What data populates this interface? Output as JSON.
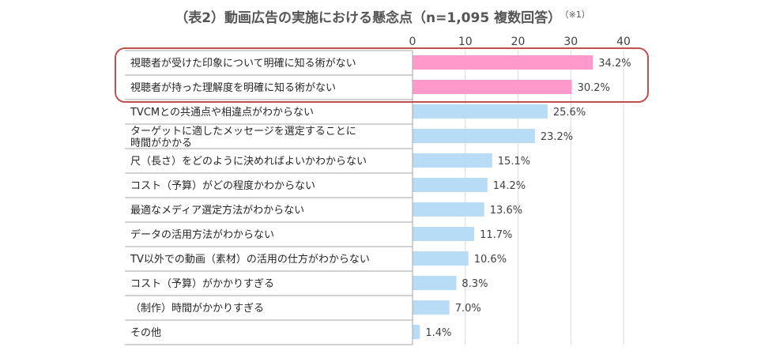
{
  "title": "（表2）動画広告の実施における懸念点（n=1,095 複数回答）",
  "note": "（※1）",
  "colors": {
    "highlight": "#ff99cc",
    "normal": "#b9dcf6",
    "frame": "#c0504d"
  },
  "chart_data": {
    "type": "bar",
    "orientation": "horizontal",
    "xlim": [
      0,
      40
    ],
    "ticks": [
      0,
      10,
      20,
      30,
      40
    ],
    "categories": [
      "視聴者が受けた印象について明確に知る術がない",
      "視聴者が持った理解度を明確に知る術がない",
      "TVCMとの共通点や相違点がわからない",
      "ターゲットに適したメッセージを選定することに\n時間がかかる",
      "尺（長さ）をどのように決めればよいかわからない",
      "コスト（予算）がどの程度かわからない",
      "最適なメディア選定方法がわからない",
      "データの活用方法がわからない",
      "TV以外での動画（素材）の活用の仕方がわからない",
      "コスト（予算）がかかりすぎる",
      "（制作）時間がかかりすぎる",
      "その他"
    ],
    "values": [
      34.2,
      30.2,
      25.6,
      23.2,
      15.1,
      14.2,
      13.6,
      11.7,
      10.6,
      8.3,
      7.0,
      1.4
    ],
    "value_labels": [
      "34.2%",
      "30.2%",
      "25.6%",
      "23.2%",
      "15.1%",
      "14.2%",
      "13.6%",
      "11.7%",
      "10.6%",
      "8.3%",
      "7.0%",
      "1.4%"
    ],
    "highlighted": [
      0,
      1
    ],
    "grid": true
  }
}
